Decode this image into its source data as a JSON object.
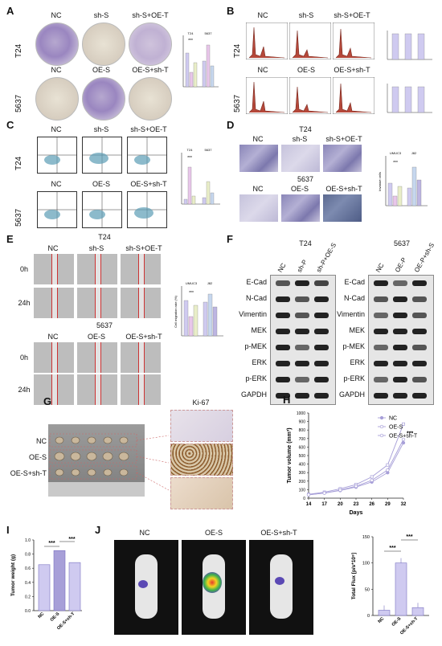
{
  "panels": [
    "A",
    "B",
    "C",
    "D",
    "E",
    "F",
    "G",
    "H",
    "I",
    "J"
  ],
  "panelA": {
    "top_cols": [
      "NC",
      "sh-S",
      "sh-S+OE-T"
    ],
    "bottom_cols": [
      "NC",
      "OE-S",
      "OE-S+sh-T"
    ],
    "rows": [
      "T24",
      "5637"
    ],
    "chart_groups": [
      "T24",
      "5637"
    ],
    "chart_sig": "***"
  },
  "panelB": {
    "top_cols": [
      "NC",
      "sh-S",
      "sh-S+OE-T"
    ],
    "bottom_cols": [
      "NC",
      "OE-S",
      "OE-S+sh-T"
    ],
    "rows": [
      "T24",
      "5637"
    ]
  },
  "panelC": {
    "top_cols": [
      "NC",
      "sh-S",
      "sh-S+OE-T"
    ],
    "bottom_cols": [
      "NC",
      "OE-S",
      "OE-S+sh-T"
    ],
    "rows": [
      "T24",
      "5637"
    ],
    "chart_groups": [
      "T24",
      "5637"
    ],
    "chart_sig": "***"
  },
  "panelD": {
    "top_title": "T24",
    "top_cols": [
      "NC",
      "sh-S",
      "sh-S+OE-T"
    ],
    "bottom_title": "5637",
    "bottom_cols": [
      "NC",
      "OE-S",
      "OE-S+sh-T"
    ],
    "chart_groups": [
      "UMUC3",
      "J82"
    ],
    "ylabel": "Invasive cells",
    "chart_sig": "***"
  },
  "panelE": {
    "top_title": "T24",
    "top_cols": [
      "NC",
      "sh-S",
      "sh-S+OE-T"
    ],
    "bottom_title": "5637",
    "bottom_cols": [
      "NC",
      "OE-S",
      "OE-S+sh-T"
    ],
    "times": [
      "0h",
      "24h"
    ],
    "chart_groups": [
      "UMUC3",
      "J82"
    ],
    "ylabel": "Cell migration rate (%)",
    "chart_sig": "***"
  },
  "panelF": {
    "left_title": "T24",
    "left_cols": [
      "NC",
      "sh-P",
      "sh-P+OE-S"
    ],
    "right_title": "5637",
    "right_cols": [
      "NC",
      "OE-P",
      "OE-P+sh-S"
    ],
    "proteins": [
      "E-Cad",
      "N-Cad",
      "Vimentin",
      "MEK",
      "p-MEK",
      "ERK",
      "p-ERK",
      "GAPDH"
    ]
  },
  "panelG": {
    "rows": [
      "NC",
      "OE-S",
      "OE-S+sh-T"
    ],
    "ihc_title": "Ki-67"
  },
  "panelH": {
    "chart_data": {
      "type": "line",
      "x": [
        14,
        17,
        20,
        23,
        26,
        29,
        32
      ],
      "xlabel": "Days",
      "ylabel": "Tumor volume (mm³)",
      "ylim": [
        0,
        1000
      ],
      "yticks": [
        0,
        100,
        200,
        300,
        400,
        500,
        600,
        700,
        800,
        900,
        1000
      ],
      "series": [
        {
          "name": "NC",
          "values": [
            40,
            60,
            90,
            130,
            190,
            300,
            650
          ]
        },
        {
          "name": "OE-S",
          "values": [
            45,
            70,
            110,
            160,
            250,
            390,
            870
          ]
        },
        {
          "name": "OE-S+sh-T",
          "values": [
            40,
            60,
            95,
            140,
            210,
            330,
            690
          ]
        }
      ],
      "legend": "top-right",
      "annotation": "***",
      "color": "#a79fd8"
    }
  },
  "panelI": {
    "chart_data": {
      "type": "bar",
      "categories": [
        "NC",
        "OE-S",
        "OE-S+sh-T"
      ],
      "values": [
        0.65,
        0.85,
        0.68
      ],
      "ylabel": "Tumor weight (g)",
      "ylim": [
        0,
        1.0
      ],
      "yticks": [
        0,
        0.2,
        0.4,
        0.6,
        0.8,
        1.0
      ],
      "colors": [
        "#cfcaf0",
        "#a79fd8",
        "#cfcaf0"
      ],
      "sig": [
        "***",
        "***"
      ]
    }
  },
  "panelJ": {
    "cols": [
      "NC",
      "OE-S",
      "OE-S+sh-T"
    ],
    "chart_data": {
      "type": "bar",
      "categories": [
        "NC",
        "OE-S",
        "OE-S+sh-T"
      ],
      "values": [
        10,
        100,
        15
      ],
      "ylabel": "Total Flux [p/s*10⁸]",
      "ylim": [
        0,
        150
      ],
      "yticks": [
        0,
        50,
        100,
        150
      ],
      "sig": [
        "***",
        "***"
      ]
    }
  }
}
